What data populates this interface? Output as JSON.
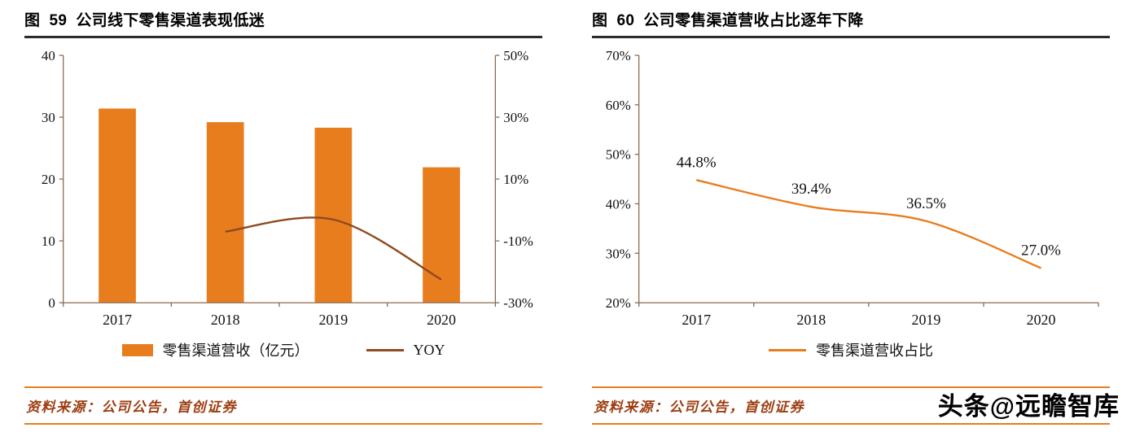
{
  "colors": {
    "bar": "#E87D1E",
    "yoy_line": "#8E4A20",
    "pct_line": "#E87D1E",
    "axis": "#8C6A4E",
    "title_rule": "#2B2B2B",
    "source_rule": "#E87D1E",
    "source_text": "#9C3D10",
    "text": "#111111"
  },
  "figure59": {
    "title": "图  59  公司线下零售渠道表现低迷",
    "source": "资料来源：公司公告，首创证券",
    "legend": [
      {
        "label": "零售渠道营收（亿元）",
        "swatch": "bar"
      },
      {
        "label": "YOY",
        "swatch": "line"
      }
    ]
  },
  "figure60": {
    "title": "图  60  公司零售渠道营收占比逐年下降",
    "source": "资料来源：公司公告，首创证券",
    "legend": [
      {
        "label": "零售渠道营收占比",
        "swatch": "line"
      }
    ]
  },
  "watermark": {
    "brand": "头条",
    "handle": "@远瞻智库"
  },
  "chart_data": [
    {
      "id": "fig59",
      "type": "bar",
      "title": "公司线下零售渠道表现低迷",
      "categories": [
        "2017",
        "2018",
        "2019",
        "2020"
      ],
      "series": [
        {
          "name": "零售渠道营收（亿元）",
          "type": "bar",
          "axis": "left",
          "values": [
            31.4,
            29.2,
            28.3,
            21.9
          ]
        },
        {
          "name": "YOY",
          "type": "line",
          "axis": "right",
          "unit": "%",
          "values": [
            null,
            -7.0,
            -3.1,
            -22.5
          ]
        }
      ],
      "axes": {
        "left": {
          "min": 0,
          "max": 40,
          "ticks": [
            {
              "v": 0,
              "label": "0"
            },
            {
              "v": 10,
              "label": "10"
            },
            {
              "v": 20,
              "label": "20"
            },
            {
              "v": 30,
              "label": "30"
            },
            {
              "v": 40,
              "label": "40"
            }
          ]
        },
        "right": {
          "min": -30,
          "max": 50,
          "ticks": [
            {
              "v": -30,
              "label": "-30%"
            },
            {
              "v": -10,
              "label": "-10%"
            },
            {
              "v": 10,
              "label": "10%"
            },
            {
              "v": 30,
              "label": "30%"
            },
            {
              "v": 50,
              "label": "50%"
            }
          ]
        }
      },
      "grid": false,
      "legend_position": "bottom"
    },
    {
      "id": "fig60",
      "type": "line",
      "title": "公司零售渠道营收占比逐年下降",
      "categories": [
        "2017",
        "2018",
        "2019",
        "2020"
      ],
      "series": [
        {
          "name": "零售渠道营收占比",
          "values": [
            44.8,
            39.4,
            36.5,
            27.0
          ],
          "labels": [
            "44.8%",
            "39.4%",
            "36.5%",
            "27.0%"
          ]
        }
      ],
      "axes": {
        "left": {
          "min": 20,
          "max": 70,
          "ticks": [
            {
              "v": 20,
              "label": "20%"
            },
            {
              "v": 30,
              "label": "30%"
            },
            {
              "v": 40,
              "label": "40%"
            },
            {
              "v": 50,
              "label": "50%"
            },
            {
              "v": 60,
              "label": "60%"
            },
            {
              "v": 70,
              "label": "70%"
            }
          ]
        }
      },
      "grid": false,
      "legend_position": "bottom"
    }
  ]
}
